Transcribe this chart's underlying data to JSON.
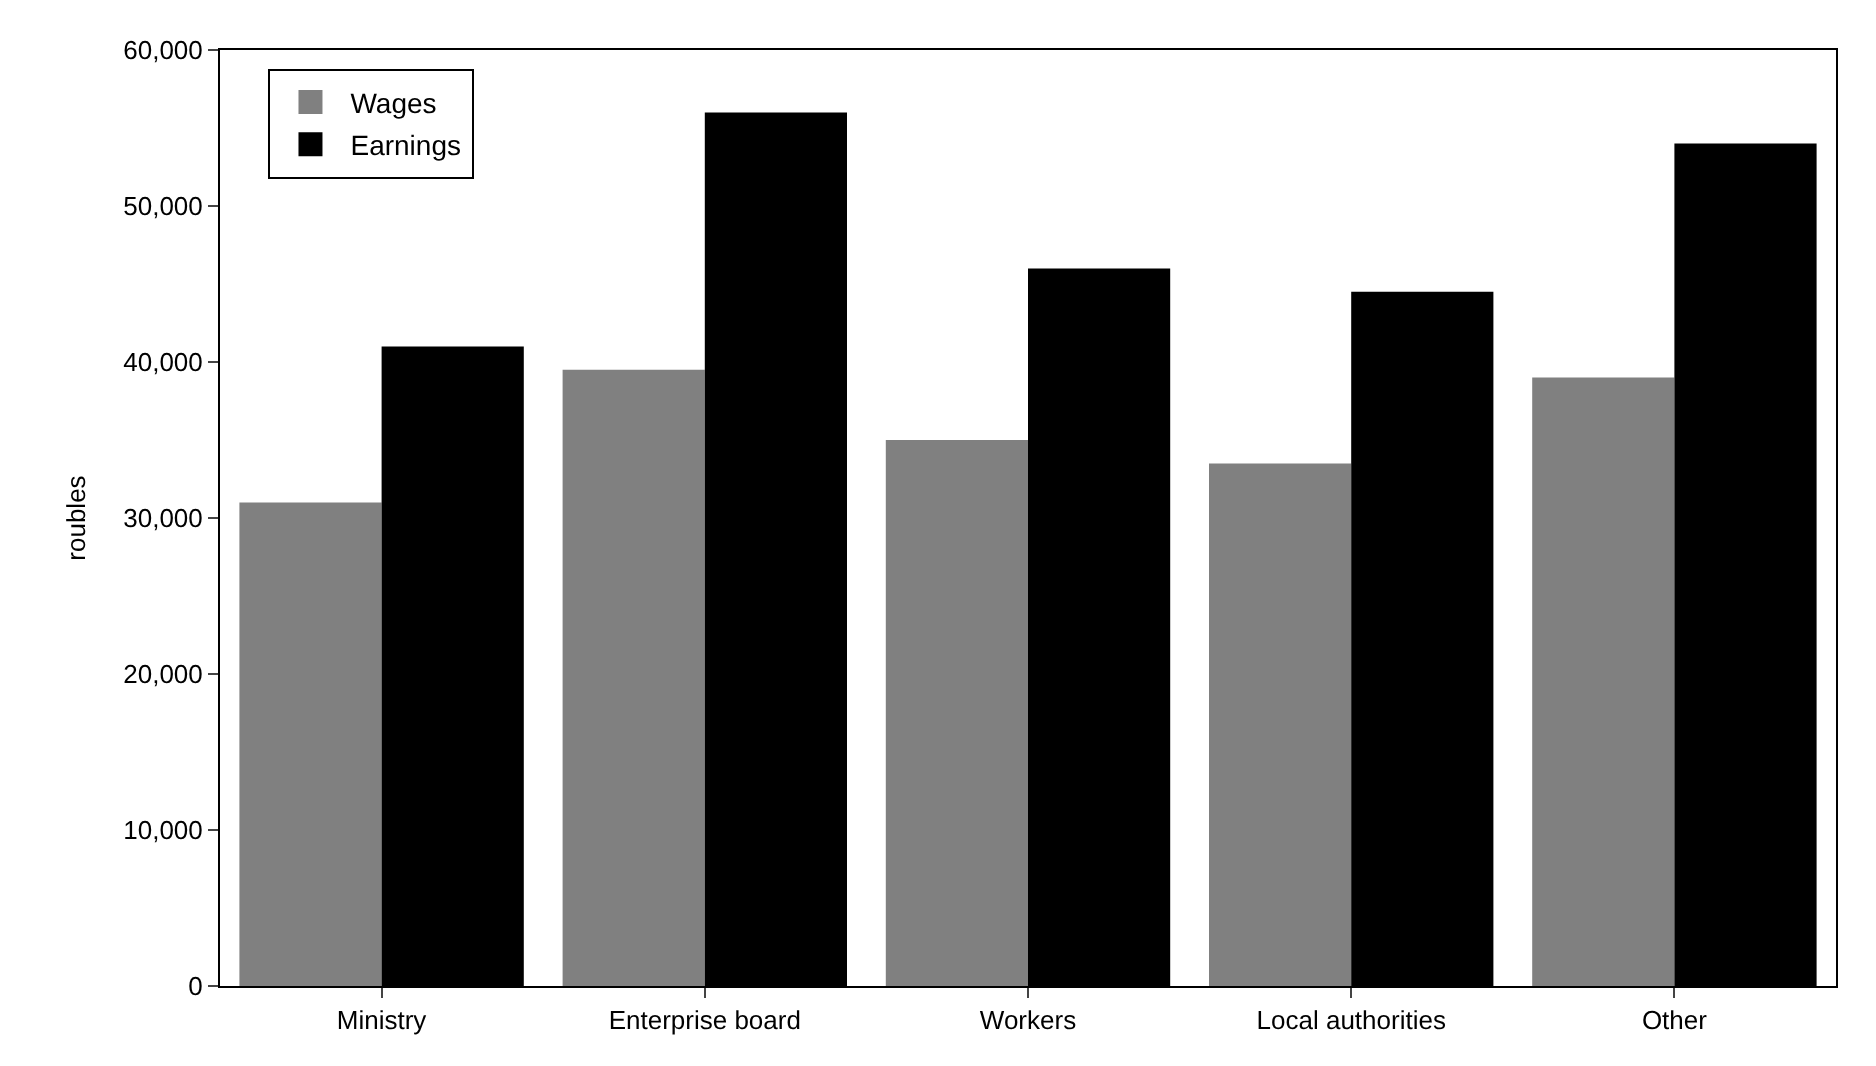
{
  "chart_data": {
    "type": "bar",
    "ylabel": "roubles",
    "categories": [
      "Ministry",
      "Enterprise board",
      "Workers",
      "Local authorities",
      "Other"
    ],
    "series": [
      {
        "name": "Wages",
        "color": "#808080",
        "values": [
          31000,
          39500,
          35000,
          33500,
          39000
        ]
      },
      {
        "name": "Earnings",
        "color": "#000000",
        "values": [
          41000,
          56000,
          46000,
          44500,
          54000
        ]
      }
    ],
    "ylim": [
      0,
      60000
    ],
    "yticks": [
      {
        "value": 0,
        "label": "0"
      },
      {
        "value": 10000,
        "label": "10,000"
      },
      {
        "value": 20000,
        "label": "20,000"
      },
      {
        "value": 30000,
        "label": "30,000"
      },
      {
        "value": 40000,
        "label": "40,000"
      },
      {
        "value": 50000,
        "label": "50,000"
      },
      {
        "value": 60000,
        "label": "60,000"
      }
    ],
    "grid": false,
    "legend": "top left"
  }
}
